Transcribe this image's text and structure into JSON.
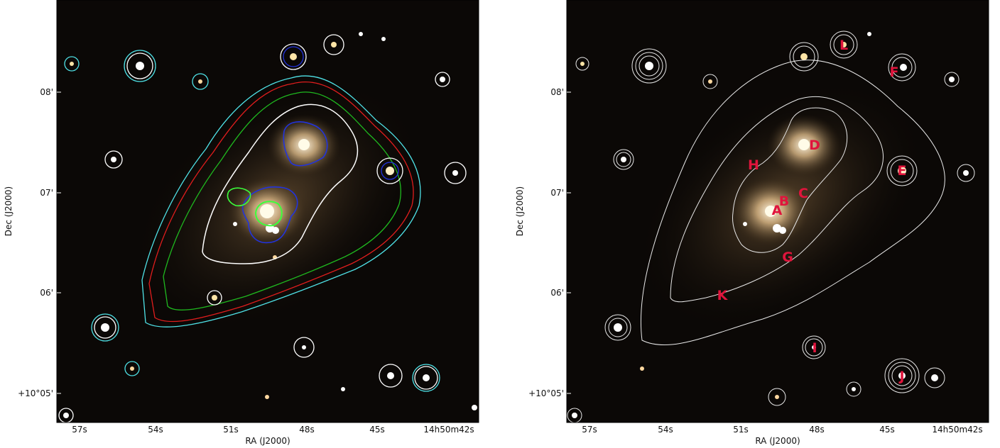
{
  "panels": [
    {
      "id": "left",
      "x_axis_label": "RA (J2000)",
      "y_axis_label": "Dec (J2000)",
      "x_ticks": [
        "57s",
        "54s",
        "51s",
        "48s",
        "45s",
        "14h50m42s"
      ],
      "y_ticks": [
        "08'",
        "07'",
        "06'",
        "+10°05'"
      ],
      "contour_colors": {
        "white": "#ffffff",
        "cyan": "#4fe3e8",
        "red": "#e11d1d",
        "green": "#1fb81f",
        "blue": "#2233dd",
        "bright_green": "#3bff3b"
      }
    },
    {
      "id": "right",
      "x_axis_label": "RA (J2000)",
      "y_axis_label": "Dec (J2000)",
      "x_ticks": [
        "57s",
        "54s",
        "51s",
        "48s",
        "45s",
        "14h50m42s"
      ],
      "y_ticks": [
        "08'",
        "07'",
        "06'",
        "+10°05'"
      ],
      "contour_colors": {
        "white": "#e8e8e8"
      },
      "marker_color": "#e0143c",
      "markers": [
        "A",
        "B",
        "C",
        "D",
        "E",
        "F",
        "G",
        "H",
        "I",
        "J",
        "K",
        "L"
      ]
    }
  ]
}
